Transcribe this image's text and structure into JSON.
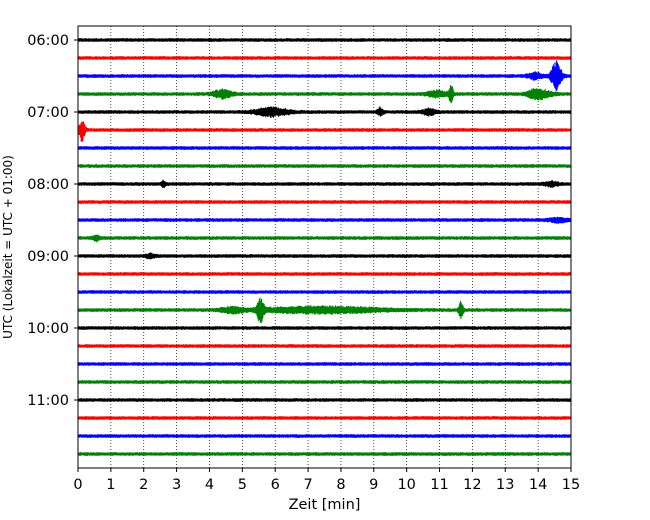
{
  "chart_data": {
    "type": "line",
    "title": "",
    "xlabel": "Zeit  [min]",
    "ylabel": "UTC (Lokalzeit = UTC + 01:00)",
    "xlim": [
      0,
      15
    ],
    "x_ticks": [
      0,
      1,
      2,
      3,
      4,
      5,
      6,
      7,
      8,
      9,
      10,
      11,
      12,
      13,
      14,
      15
    ],
    "x_tick_labels": [
      "0",
      "1",
      "2",
      "3",
      "4",
      "5",
      "6",
      "7",
      "8",
      "9",
      "10",
      "11",
      "12",
      "13",
      "14",
      "15"
    ],
    "y_tick_labels": [
      "06:00",
      "07:00",
      "08:00",
      "09:00",
      "10:00",
      "11:00"
    ],
    "grid": "vertical dotted",
    "line_minutes": 15,
    "color_cycle": [
      "#000000",
      "#ff0000",
      "#0000ff",
      "#008000"
    ],
    "series": [
      {
        "start": "06:00",
        "color": "#000000",
        "bursts": []
      },
      {
        "start": "06:15",
        "color": "#ff0000",
        "bursts": []
      },
      {
        "start": "06:30",
        "color": "#0000ff",
        "bursts": [
          {
            "t": 14.55,
            "amp": 14,
            "width": 0.22
          },
          {
            "t": 13.9,
            "amp": 3,
            "width": 0.3
          }
        ]
      },
      {
        "start": "06:45",
        "color": "#008000",
        "bursts": [
          {
            "t": 4.4,
            "amp": 4,
            "width": 0.4
          },
          {
            "t": 11.35,
            "amp": 8,
            "width": 0.1
          },
          {
            "t": 10.9,
            "amp": 3,
            "width": 0.4
          },
          {
            "t": 13.9,
            "amp": 4,
            "width": 0.35
          },
          {
            "t": 14.2,
            "amp": 2.5,
            "width": 0.4
          }
        ]
      },
      {
        "start": "07:00",
        "color": "#000000",
        "bursts": [
          {
            "t": 5.9,
            "amp": 4,
            "width": 0.7
          },
          {
            "t": 9.2,
            "amp": 4,
            "width": 0.12
          },
          {
            "t": 10.7,
            "amp": 3,
            "width": 0.3
          }
        ]
      },
      {
        "start": "07:15",
        "color": "#ff0000",
        "bursts": [
          {
            "t": 0.12,
            "amp": 11,
            "width": 0.12
          }
        ]
      },
      {
        "start": "07:30",
        "color": "#0000ff",
        "bursts": []
      },
      {
        "start": "07:45",
        "color": "#008000",
        "bursts": []
      },
      {
        "start": "08:00",
        "color": "#000000",
        "bursts": [
          {
            "t": 2.6,
            "amp": 3,
            "width": 0.08
          },
          {
            "t": 14.4,
            "amp": 2,
            "width": 0.3
          }
        ]
      },
      {
        "start": "08:15",
        "color": "#ff0000",
        "bursts": []
      },
      {
        "start": "08:30",
        "color": "#0000ff",
        "bursts": [
          {
            "t": 14.6,
            "amp": 2,
            "width": 0.4
          }
        ]
      },
      {
        "start": "08:45",
        "color": "#008000",
        "bursts": [
          {
            "t": 0.55,
            "amp": 3,
            "width": 0.15
          }
        ]
      },
      {
        "start": "09:00",
        "color": "#000000",
        "bursts": [
          {
            "t": 2.2,
            "amp": 2,
            "width": 0.2
          }
        ]
      },
      {
        "start": "09:15",
        "color": "#ff0000",
        "bursts": []
      },
      {
        "start": "09:30",
        "color": "#0000ff",
        "bursts": []
      },
      {
        "start": "09:45",
        "color": "#008000",
        "bursts": [
          {
            "t": 5.55,
            "amp": 11,
            "width": 0.15
          },
          {
            "t": 7.4,
            "amp": 3,
            "width": 2.6
          },
          {
            "t": 11.65,
            "amp": 8,
            "width": 0.1
          },
          {
            "t": 4.7,
            "amp": 2.5,
            "width": 0.5
          }
        ]
      },
      {
        "start": "10:00",
        "color": "#000000",
        "bursts": []
      },
      {
        "start": "10:15",
        "color": "#ff0000",
        "bursts": []
      },
      {
        "start": "10:30",
        "color": "#0000ff",
        "bursts": []
      },
      {
        "start": "10:45",
        "color": "#008000",
        "bursts": []
      },
      {
        "start": "11:00",
        "color": "#000000",
        "bursts": []
      },
      {
        "start": "11:15",
        "color": "#ff0000",
        "bursts": []
      },
      {
        "start": "11:30",
        "color": "#0000ff",
        "bursts": []
      },
      {
        "start": "11:45",
        "color": "#008000",
        "bursts": []
      }
    ]
  }
}
